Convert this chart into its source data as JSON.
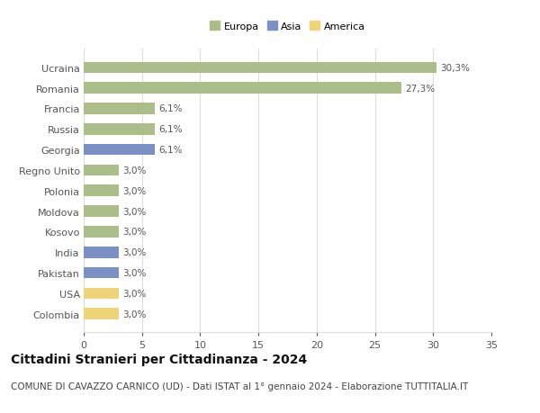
{
  "categories": [
    "Colombia",
    "USA",
    "Pakistan",
    "India",
    "Kosovo",
    "Moldova",
    "Polonia",
    "Regno Unito",
    "Georgia",
    "Russia",
    "Francia",
    "Romania",
    "Ucraina"
  ],
  "values": [
    3.0,
    3.0,
    3.0,
    3.0,
    3.0,
    3.0,
    3.0,
    3.0,
    6.1,
    6.1,
    6.1,
    27.3,
    30.3
  ],
  "bar_colors": [
    "#f0d47a",
    "#f0d47a",
    "#7b90c4",
    "#7b90c4",
    "#abbe8a",
    "#abbe8a",
    "#abbe8a",
    "#abbe8a",
    "#7b90c4",
    "#abbe8a",
    "#abbe8a",
    "#abbe8a",
    "#abbe8a"
  ],
  "labels": [
    "3,0%",
    "3,0%",
    "3,0%",
    "3,0%",
    "3,0%",
    "3,0%",
    "3,0%",
    "3,0%",
    "6,1%",
    "6,1%",
    "6,1%",
    "27,3%",
    "30,3%"
  ],
  "legend_labels": [
    "Europa",
    "Asia",
    "America"
  ],
  "legend_colors": [
    "#abbe8a",
    "#7b90c4",
    "#f0d47a"
  ],
  "title": "Cittadini Stranieri per Cittadinanza - 2024",
  "subtitle": "COMUNE DI CAVAZZO CARNICO (UD) - Dati ISTAT al 1° gennaio 2024 - Elaborazione TUTTITALIA.IT",
  "xlim": [
    0,
    35
  ],
  "xticks": [
    0,
    5,
    10,
    15,
    20,
    25,
    30,
    35
  ],
  "background_color": "#ffffff",
  "plot_background": "#ffffff",
  "grid_color": "#dddddd",
  "title_fontsize": 10,
  "subtitle_fontsize": 7.5,
  "label_fontsize": 7.5,
  "tick_fontsize": 8
}
